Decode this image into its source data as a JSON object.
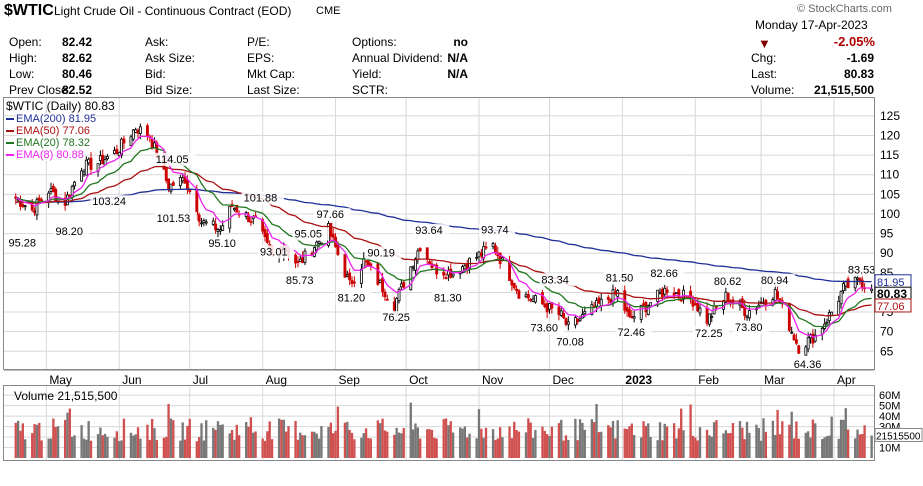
{
  "header": {
    "symbol": "$WTIC",
    "description": "Light Crude Oil - Continuous Contract (EOD)",
    "exchange": "CME",
    "watermark": "© StockCharts.com",
    "date": "Monday 17-Apr-2023",
    "pct_change": "-2.05%",
    "fields": [
      {
        "label": "Open:",
        "value": "82.42"
      },
      {
        "label": "High:",
        "value": "82.62"
      },
      {
        "label": "Low:",
        "value": "80.46"
      },
      {
        "label": "Prev Close:",
        "value": "82.52"
      }
    ],
    "fields2": [
      {
        "label": "Ask:",
        "value": ""
      },
      {
        "label": "Ask Size:",
        "value": ""
      },
      {
        "label": "Bid:",
        "value": ""
      },
      {
        "label": "Bid Size:",
        "value": ""
      }
    ],
    "fields3": [
      {
        "label": "P/E:",
        "value": ""
      },
      {
        "label": "EPS:",
        "value": ""
      },
      {
        "label": "Mkt Cap:",
        "value": ""
      },
      {
        "label": "Last Size:",
        "value": ""
      }
    ],
    "fields4": [
      {
        "label": "Options:",
        "value": "no"
      },
      {
        "label": "Annual Dividend:",
        "value": "N/A"
      },
      {
        "label": "Yield:",
        "value": "N/A"
      },
      {
        "label": "SCTR:",
        "value": ""
      }
    ],
    "fields5": [
      {
        "label": "Chg:",
        "value": "-1.69"
      },
      {
        "label": "Last:",
        "value": "80.83"
      },
      {
        "label": "Volume:",
        "value": "21,515,500"
      }
    ]
  },
  "colors": {
    "down": "#cc0000",
    "up": "#000000",
    "ema200": "#1f2f99",
    "ema50": "#aa1111",
    "ema20": "#227722",
    "ema8": "#ee22ee",
    "grid": "#d8d8d8",
    "volume_up": "#777777",
    "volume_down": "#d05050",
    "pct_color": "#b00000"
  },
  "chart_data": {
    "type": "candlestick",
    "title": "$WTIC (Daily) 80.83",
    "price_axis": {
      "ticks": [
        65,
        70,
        75,
        80,
        85,
        90,
        95,
        100,
        105,
        110,
        115,
        120,
        125
      ],
      "ylim": [
        61,
        127
      ]
    },
    "x_months": [
      "May",
      "Jun",
      "Jul",
      "Aug",
      "Sep",
      "Oct",
      "Nov",
      "Dec",
      "2023",
      "Feb",
      "Mar",
      "Apr"
    ],
    "legend": [
      {
        "label": "EMA(200) 81.95",
        "color": "#1f2f99"
      },
      {
        "label": "EMA(50) 77.06",
        "color": "#aa1111"
      },
      {
        "label": "EMA(20) 78.32",
        "color": "#227722"
      },
      {
        "label": "EMA(8) 80.88",
        "color": "#ee22ee"
      }
    ],
    "last_price_label": "80.83",
    "right_labels": [
      "81.95",
      "80.83",
      "77.06"
    ],
    "trend_points": [
      [
        "2022-04-18",
        104
      ],
      [
        "2022-04-25",
        101
      ],
      [
        "2022-05-02",
        106
      ],
      [
        "2022-05-09",
        103
      ],
      [
        "2022-05-16",
        112
      ],
      [
        "2022-05-23",
        113
      ],
      [
        "2022-05-31",
        116
      ],
      [
        "2022-06-08",
        122
      ],
      [
        "2022-06-14",
        120
      ],
      [
        "2022-06-22",
        107
      ],
      [
        "2022-06-29",
        109
      ],
      [
        "2022-07-06",
        98
      ],
      [
        "2022-07-14",
        96
      ],
      [
        "2022-07-19",
        102
      ],
      [
        "2022-07-29",
        98
      ],
      [
        "2022-08-05",
        89
      ],
      [
        "2022-08-10",
        92
      ],
      [
        "2022-08-16",
        87
      ],
      [
        "2022-08-29",
        96
      ],
      [
        "2022-09-07",
        82
      ],
      [
        "2022-09-13",
        88
      ],
      [
        "2022-09-26",
        77
      ],
      [
        "2022-10-07",
        92
      ],
      [
        "2022-10-13",
        86
      ],
      [
        "2022-10-21",
        85
      ],
      [
        "2022-11-07",
        92
      ],
      [
        "2022-11-18",
        80
      ],
      [
        "2022-11-28",
        77
      ],
      [
        "2022-12-06",
        74
      ],
      [
        "2022-12-09",
        71
      ],
      [
        "2022-12-20",
        76
      ],
      [
        "2022-12-30",
        80
      ],
      [
        "2023-01-04",
        73
      ],
      [
        "2023-01-20",
        81
      ],
      [
        "2023-01-31",
        78
      ],
      [
        "2023-02-06",
        73
      ],
      [
        "2023-02-14",
        79
      ],
      [
        "2023-02-23",
        75
      ],
      [
        "2023-03-07",
        80
      ],
      [
        "2023-03-17",
        66
      ],
      [
        "2023-03-24",
        69
      ],
      [
        "2023-03-31",
        75
      ],
      [
        "2023-04-05",
        81
      ],
      [
        "2023-04-12",
        83
      ],
      [
        "2023-04-17",
        80.83
      ]
    ],
    "annotations": [
      {
        "date": "2022-04-20",
        "value": 95.28,
        "text": "95.28",
        "pos": "below"
      },
      {
        "date": "2022-05-10",
        "value": 98.2,
        "text": "98.20",
        "pos": "below"
      },
      {
        "date": "2022-05-18",
        "value": 103.24,
        "text": "103.24",
        "pos": "right"
      },
      {
        "date": "2022-06-14",
        "value": 114.05,
        "text": "114.05",
        "pos": "right"
      },
      {
        "date": "2022-06-22",
        "value": 101.53,
        "text": "101.53",
        "pos": "below"
      },
      {
        "date": "2022-07-14",
        "value": 95.1,
        "text": "95.10",
        "pos": "below"
      },
      {
        "date": "2022-07-29",
        "value": 101.88,
        "text": "101.88",
        "pos": "above"
      },
      {
        "date": "2022-08-05",
        "value": 93.01,
        "text": "93.01",
        "pos": "below"
      },
      {
        "date": "2022-08-12",
        "value": 95.05,
        "text": "95.05",
        "pos": "right"
      },
      {
        "date": "2022-08-16",
        "value": 85.73,
        "text": "85.73",
        "pos": "below"
      },
      {
        "date": "2022-08-29",
        "value": 97.66,
        "text": "97.66",
        "pos": "above"
      },
      {
        "date": "2022-09-12",
        "value": 90.19,
        "text": "90.19",
        "pos": "right"
      },
      {
        "date": "2022-09-07",
        "value": 81.2,
        "text": "81.20",
        "pos": "below"
      },
      {
        "date": "2022-09-26",
        "value": 76.25,
        "text": "76.25",
        "pos": "below"
      },
      {
        "date": "2022-10-10",
        "value": 93.64,
        "text": "93.64",
        "pos": "above"
      },
      {
        "date": "2022-10-18",
        "value": 81.3,
        "text": "81.30",
        "pos": "below"
      },
      {
        "date": "2022-11-07",
        "value": 93.74,
        "text": "93.74",
        "pos": "above"
      },
      {
        "date": "2022-11-25",
        "value": 83.34,
        "text": "83.34",
        "pos": "right"
      },
      {
        "date": "2022-11-28",
        "value": 73.6,
        "text": "73.60",
        "pos": "below"
      },
      {
        "date": "2022-12-09",
        "value": 70.08,
        "text": "70.08",
        "pos": "below"
      },
      {
        "date": "2022-12-30",
        "value": 81.5,
        "text": "81.50",
        "pos": "above"
      },
      {
        "date": "2023-01-04",
        "value": 72.46,
        "text": "72.46",
        "pos": "below"
      },
      {
        "date": "2023-01-18",
        "value": 82.66,
        "text": "82.66",
        "pos": "above"
      },
      {
        "date": "2023-02-06",
        "value": 72.25,
        "text": "72.25",
        "pos": "below"
      },
      {
        "date": "2023-02-14",
        "value": 80.62,
        "text": "80.62",
        "pos": "above"
      },
      {
        "date": "2023-02-23",
        "value": 73.8,
        "text": "73.80",
        "pos": "below"
      },
      {
        "date": "2023-03-06",
        "value": 80.94,
        "text": "80.94",
        "pos": "above"
      },
      {
        "date": "2023-03-20",
        "value": 64.36,
        "text": "64.36",
        "pos": "below"
      },
      {
        "date": "2023-04-12",
        "value": 83.53,
        "text": "83.53",
        "pos": "above"
      }
    ],
    "volume": {
      "label": "Volume 21,515,500",
      "ticks": [
        "10M",
        "20M",
        "30M",
        "40M",
        "50M",
        "60M"
      ],
      "tick_values": [
        10,
        20,
        30,
        40,
        50,
        60
      ],
      "ylim": [
        0,
        63
      ],
      "last_label": "21515500",
      "last_value": 21.5
    }
  }
}
